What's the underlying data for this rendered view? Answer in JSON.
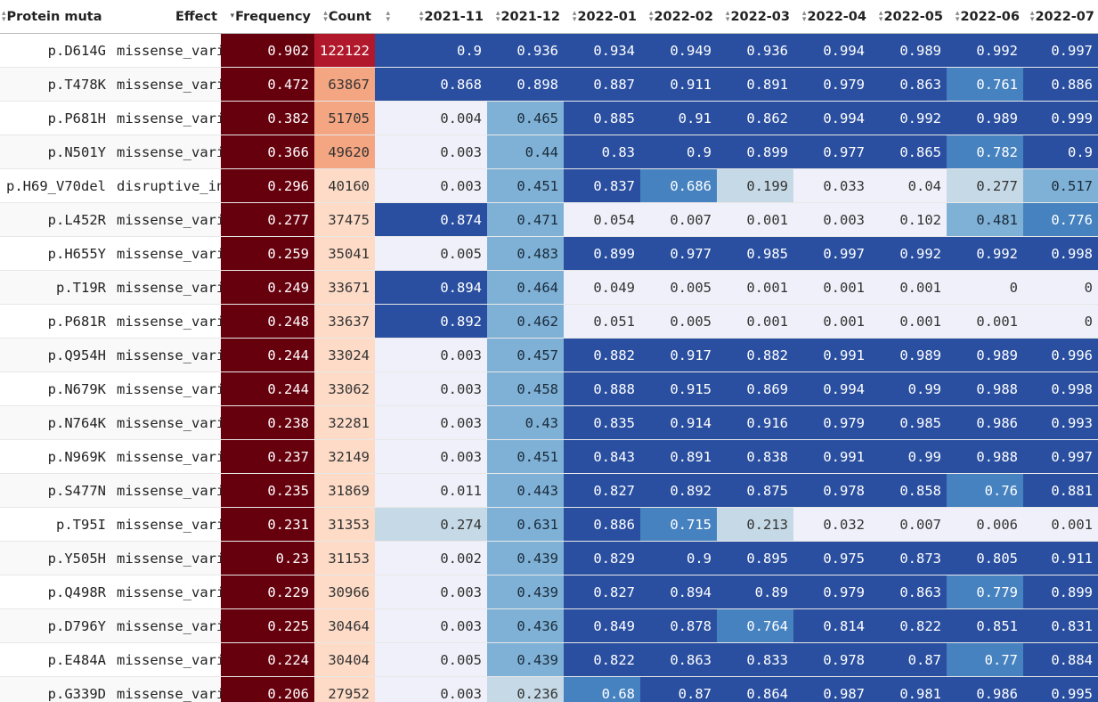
{
  "columns": [
    {
      "label": "Protein muta",
      "sort": "none"
    },
    {
      "label": "Effect",
      "sort": "none"
    },
    {
      "label": "Frequency",
      "sort": "desc"
    },
    {
      "label": "Count",
      "sort": "none"
    },
    {
      "label": "",
      "sort": "none"
    },
    {
      "label": "2021-11",
      "sort": "none"
    },
    {
      "label": "2021-12",
      "sort": "none"
    },
    {
      "label": "2022-01",
      "sort": "none"
    },
    {
      "label": "2022-02",
      "sort": "none"
    },
    {
      "label": "2022-03",
      "sort": "none"
    },
    {
      "label": "2022-04",
      "sort": "none"
    },
    {
      "label": "2022-05",
      "sort": "none"
    },
    {
      "label": "2022-06",
      "sort": "none"
    },
    {
      "label": "2022-07",
      "sort": "none"
    }
  ],
  "rows": [
    {
      "mutation": "p.D614G",
      "effect": "missense_vari",
      "frequency": "0.902",
      "count": "122122",
      "months": [
        "0.9",
        "0.936",
        "0.934",
        "0.949",
        "0.936",
        "0.994",
        "0.989",
        "0.992",
        "0.997"
      ]
    },
    {
      "mutation": "p.T478K",
      "effect": "missense_vari",
      "frequency": "0.472",
      "count": "63867",
      "months": [
        "0.868",
        "0.898",
        "0.887",
        "0.911",
        "0.891",
        "0.979",
        "0.863",
        "0.761",
        "0.886"
      ]
    },
    {
      "mutation": "p.P681H",
      "effect": "missense_vari",
      "frequency": "0.382",
      "count": "51705",
      "months": [
        "0.004",
        "0.465",
        "0.885",
        "0.91",
        "0.862",
        "0.994",
        "0.992",
        "0.989",
        "0.999"
      ]
    },
    {
      "mutation": "p.N501Y",
      "effect": "missense_vari",
      "frequency": "0.366",
      "count": "49620",
      "months": [
        "0.003",
        "0.44",
        "0.83",
        "0.9",
        "0.899",
        "0.977",
        "0.865",
        "0.782",
        "0.9"
      ]
    },
    {
      "mutation": "p.H69_V70del",
      "effect": "disruptive_in",
      "frequency": "0.296",
      "count": "40160",
      "months": [
        "0.003",
        "0.451",
        "0.837",
        "0.686",
        "0.199",
        "0.033",
        "0.04",
        "0.277",
        "0.517"
      ]
    },
    {
      "mutation": "p.L452R",
      "effect": "missense_vari",
      "frequency": "0.277",
      "count": "37475",
      "months": [
        "0.874",
        "0.471",
        "0.054",
        "0.007",
        "0.001",
        "0.003",
        "0.102",
        "0.481",
        "0.776"
      ]
    },
    {
      "mutation": "p.H655Y",
      "effect": "missense_vari",
      "frequency": "0.259",
      "count": "35041",
      "months": [
        "0.005",
        "0.483",
        "0.899",
        "0.977",
        "0.985",
        "0.997",
        "0.992",
        "0.992",
        "0.998"
      ]
    },
    {
      "mutation": "p.T19R",
      "effect": "missense_vari",
      "frequency": "0.249",
      "count": "33671",
      "months": [
        "0.894",
        "0.464",
        "0.049",
        "0.005",
        "0.001",
        "0.001",
        "0.001",
        "0",
        "0"
      ]
    },
    {
      "mutation": "p.P681R",
      "effect": "missense_vari",
      "frequency": "0.248",
      "count": "33637",
      "months": [
        "0.892",
        "0.462",
        "0.051",
        "0.005",
        "0.001",
        "0.001",
        "0.001",
        "0.001",
        "0"
      ]
    },
    {
      "mutation": "p.Q954H",
      "effect": "missense_vari",
      "frequency": "0.244",
      "count": "33024",
      "months": [
        "0.003",
        "0.457",
        "0.882",
        "0.917",
        "0.882",
        "0.991",
        "0.989",
        "0.989",
        "0.996"
      ]
    },
    {
      "mutation": "p.N679K",
      "effect": "missense_vari",
      "frequency": "0.244",
      "count": "33062",
      "months": [
        "0.003",
        "0.458",
        "0.888",
        "0.915",
        "0.869",
        "0.994",
        "0.99",
        "0.988",
        "0.998"
      ]
    },
    {
      "mutation": "p.N764K",
      "effect": "missense_vari",
      "frequency": "0.238",
      "count": "32281",
      "months": [
        "0.003",
        "0.43",
        "0.835",
        "0.914",
        "0.916",
        "0.979",
        "0.985",
        "0.986",
        "0.993"
      ]
    },
    {
      "mutation": "p.N969K",
      "effect": "missense_vari",
      "frequency": "0.237",
      "count": "32149",
      "months": [
        "0.003",
        "0.451",
        "0.843",
        "0.891",
        "0.838",
        "0.991",
        "0.99",
        "0.988",
        "0.997"
      ]
    },
    {
      "mutation": "p.S477N",
      "effect": "missense_vari",
      "frequency": "0.235",
      "count": "31869",
      "months": [
        "0.011",
        "0.443",
        "0.827",
        "0.892",
        "0.875",
        "0.978",
        "0.858",
        "0.76",
        "0.881"
      ]
    },
    {
      "mutation": "p.T95I",
      "effect": "missense_vari",
      "frequency": "0.231",
      "count": "31353",
      "months": [
        "0.274",
        "0.631",
        "0.886",
        "0.715",
        "0.213",
        "0.032",
        "0.007",
        "0.006",
        "0.001"
      ]
    },
    {
      "mutation": "p.Y505H",
      "effect": "missense_vari",
      "frequency": "0.23",
      "count": "31153",
      "months": [
        "0.002",
        "0.439",
        "0.829",
        "0.9",
        "0.895",
        "0.975",
        "0.873",
        "0.805",
        "0.911"
      ]
    },
    {
      "mutation": "p.Q498R",
      "effect": "missense_vari",
      "frequency": "0.229",
      "count": "30966",
      "months": [
        "0.003",
        "0.439",
        "0.827",
        "0.894",
        "0.89",
        "0.979",
        "0.863",
        "0.779",
        "0.899"
      ]
    },
    {
      "mutation": "p.D796Y",
      "effect": "missense_vari",
      "frequency": "0.225",
      "count": "30464",
      "months": [
        "0.003",
        "0.436",
        "0.849",
        "0.878",
        "0.764",
        "0.814",
        "0.822",
        "0.851",
        "0.831"
      ]
    },
    {
      "mutation": "p.E484A",
      "effect": "missense_vari",
      "frequency": "0.224",
      "count": "30404",
      "months": [
        "0.005",
        "0.439",
        "0.822",
        "0.863",
        "0.833",
        "0.978",
        "0.87",
        "0.77",
        "0.884"
      ]
    },
    {
      "mutation": "p.G339D",
      "effect": "missense_vari",
      "frequency": "0.206",
      "count": "27952",
      "months": [
        "0.003",
        "0.236",
        "0.68",
        "0.87",
        "0.864",
        "0.987",
        "0.981",
        "0.986",
        "0.995"
      ]
    }
  ],
  "colors": {
    "frequency_bg": "#67000d",
    "count_high": "#b2182b",
    "count_mid": "#f4a582",
    "count_low": "#fddbc7",
    "month_low": "#f0f0fa",
    "month_light": "#c5d9e6",
    "month_mid": "#7fb1d6",
    "month_high": "#4682c0",
    "month_top": "#2a4fa0"
  }
}
